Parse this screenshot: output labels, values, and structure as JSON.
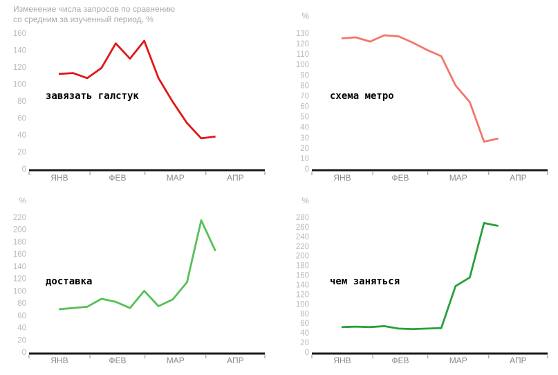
{
  "header": {
    "title_line1": "Изменение числа запросов по сравнению",
    "title_line2": "со средним за изученный период, %",
    "unit_label": "%"
  },
  "chart_data": [
    {
      "type": "line",
      "query_label": "завязать галстук",
      "line_color": "#e01717",
      "x_tick_labels": [
        "ЯНВ",
        "ФЕВ",
        "МАР",
        "АПР"
      ],
      "y_axis": {
        "min": 0,
        "max": 160,
        "step": 20
      },
      "ylabel": "%",
      "grid": false,
      "values": [
        112,
        113,
        107,
        119,
        148,
        130,
        151,
        107,
        79,
        54,
        36,
        38
      ]
    },
    {
      "type": "line",
      "query_label": "схема метро",
      "line_color": "#f4756b",
      "x_tick_labels": [
        "ЯНВ",
        "ФЕВ",
        "МАР",
        "АПР"
      ],
      "y_axis": {
        "min": 0,
        "max": 130,
        "step": 10
      },
      "ylabel": "%",
      "grid": false,
      "values": [
        125,
        126,
        122,
        128,
        127,
        121,
        114,
        108,
        80,
        64,
        26,
        29
      ]
    },
    {
      "type": "line",
      "query_label": "доставка",
      "line_color": "#57c057",
      "x_tick_labels": [
        "ЯНВ",
        "ФЕВ",
        "МАР",
        "АПР"
      ],
      "y_axis": {
        "min": 0,
        "max": 220,
        "step": 20
      },
      "ylabel": "%",
      "grid": false,
      "values": [
        70,
        72,
        74,
        87,
        82,
        72,
        100,
        75,
        86,
        114,
        215,
        165
      ]
    },
    {
      "type": "line",
      "query_label": "чем заняться",
      "line_color": "#28a038",
      "x_tick_labels": [
        "ЯНВ",
        "ФЕВ",
        "МАР",
        "АПР"
      ],
      "y_axis": {
        "min": 0,
        "max": 280,
        "step": 20
      },
      "ylabel": "%",
      "grid": false,
      "values": [
        52,
        53,
        52,
        54,
        49,
        48,
        49,
        50,
        137,
        155,
        268,
        262
      ]
    }
  ]
}
